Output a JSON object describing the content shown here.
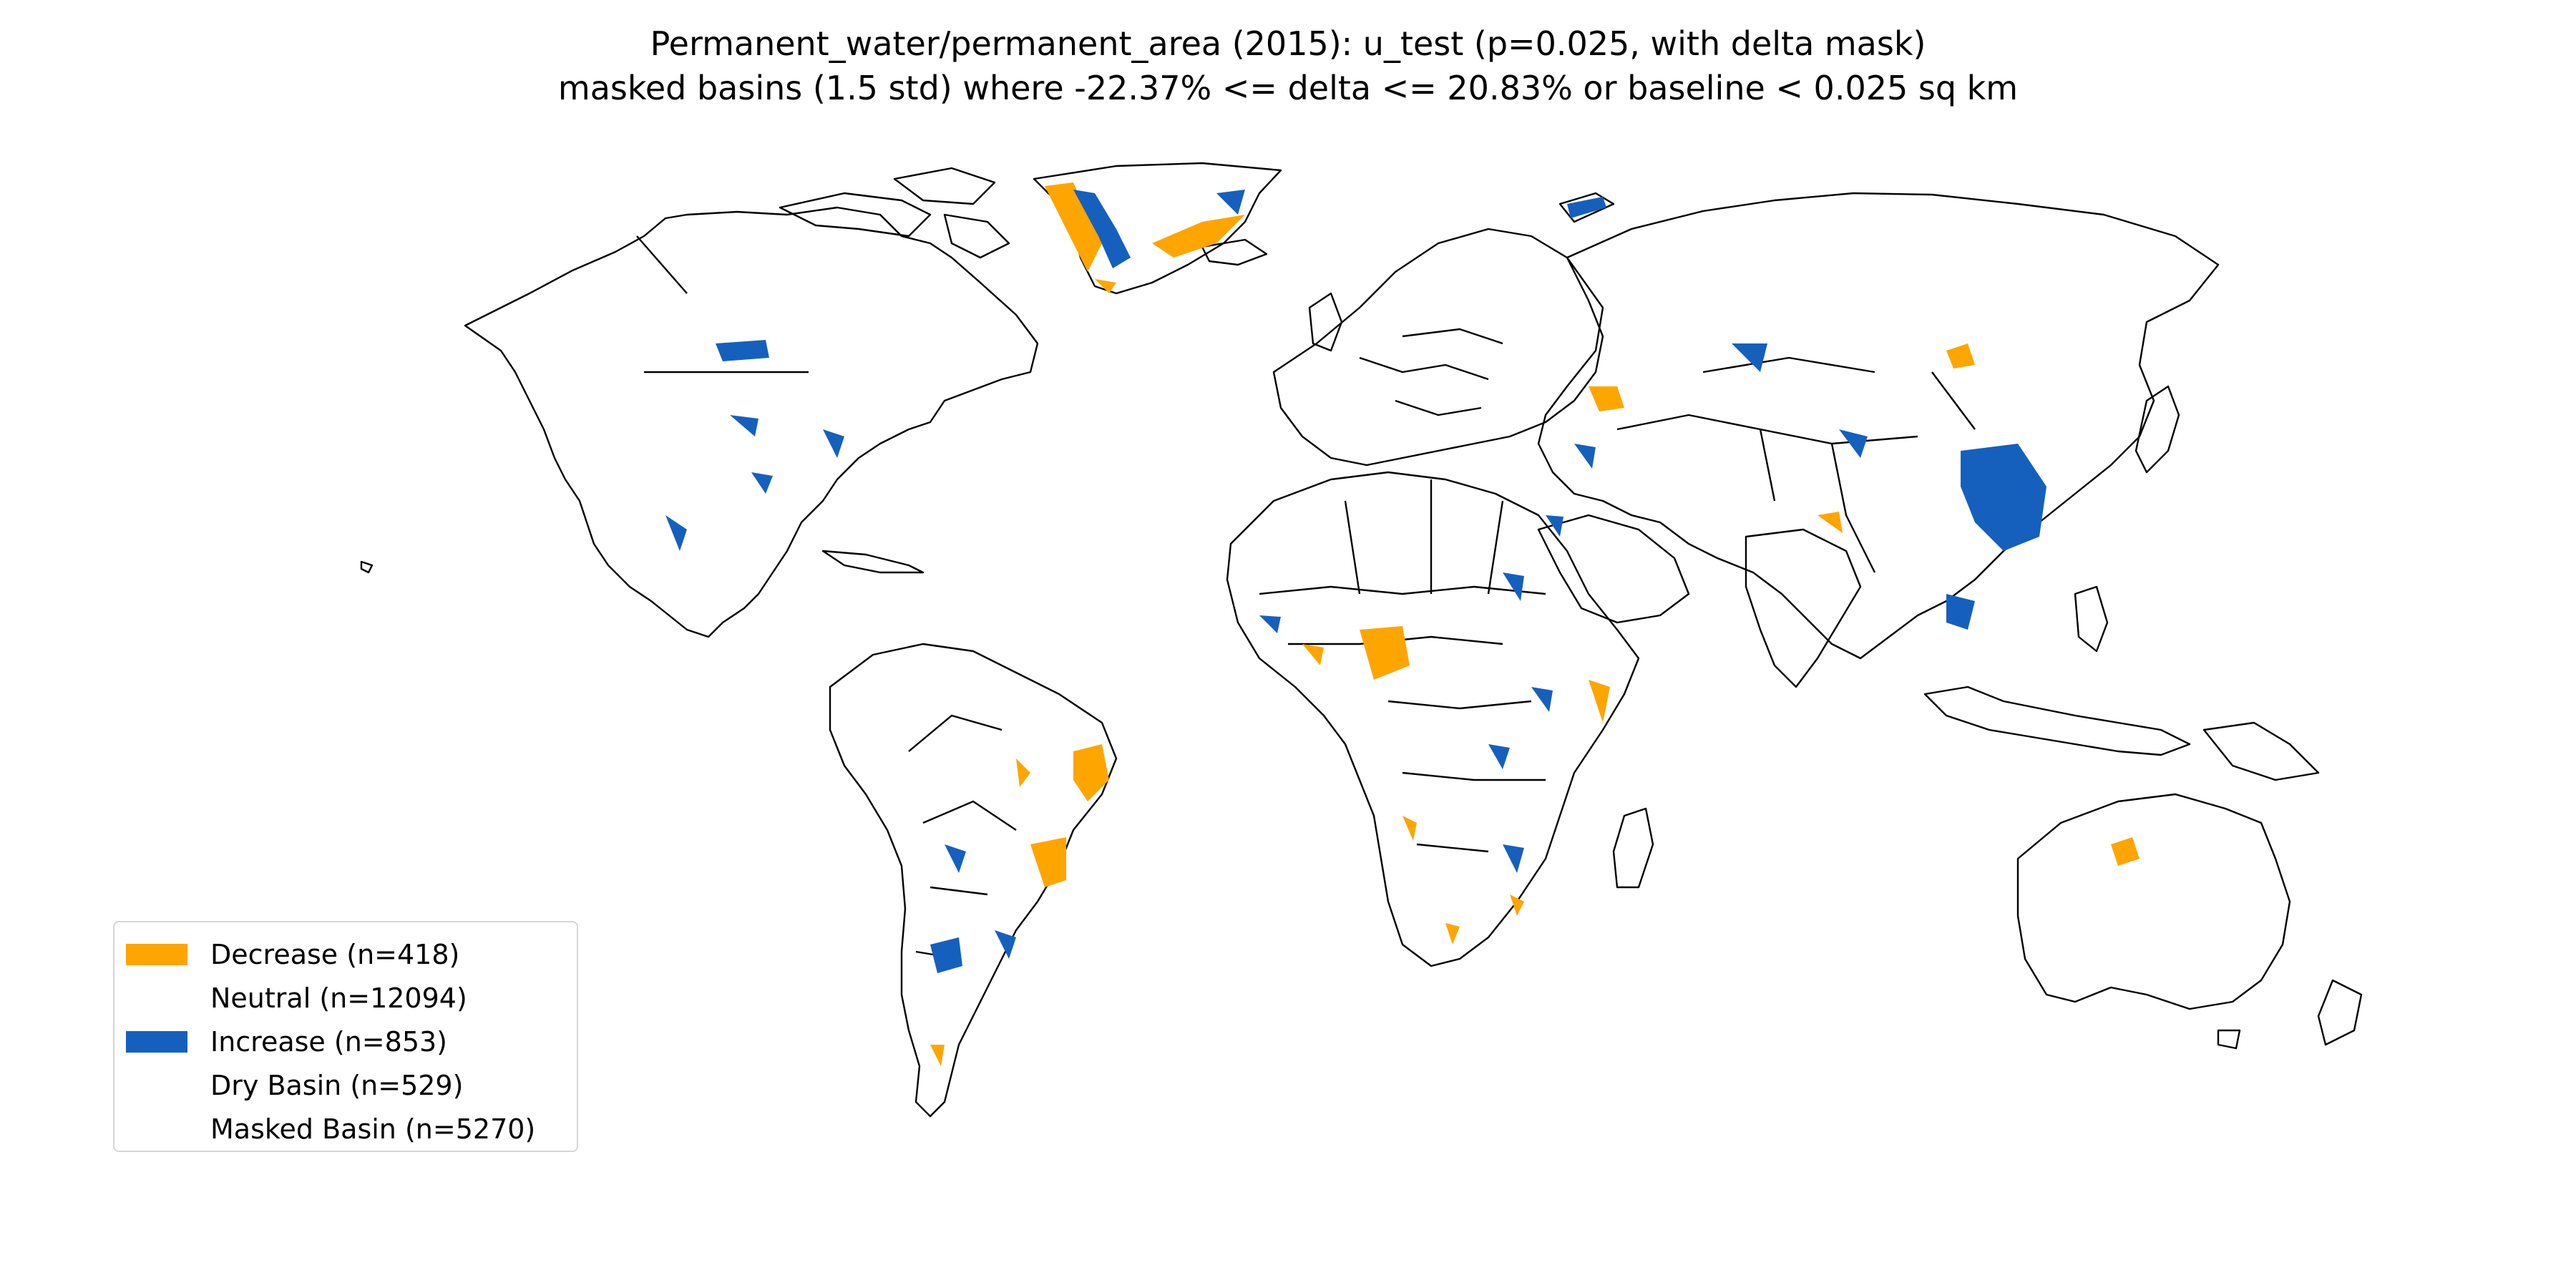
{
  "title": {
    "line1": "Permanent_water/permanent_area (2015): u_test (p=0.025, with delta mask)",
    "line2": "masked basins (1.5 std) where -22.37% <= delta <= 20.83% or baseline < 0.025 sq km"
  },
  "legend": {
    "placement": "lower-left",
    "items": [
      {
        "label": "Decrease (n=418)",
        "color": "#ffa500"
      },
      {
        "label": "Neutral (n=12094)",
        "color": "#ffffff"
      },
      {
        "label": "Increase (n=853)",
        "color": "#1560bd"
      },
      {
        "label": "Dry Basin (n=529)",
        "color": "#ffffff"
      },
      {
        "label": "Masked Basin (n=5270)",
        "color": "#ffffff"
      }
    ]
  },
  "colors": {
    "decrease": "#ffa500",
    "increase": "#1560bd",
    "outline": "#000000",
    "background": "#ffffff"
  }
}
